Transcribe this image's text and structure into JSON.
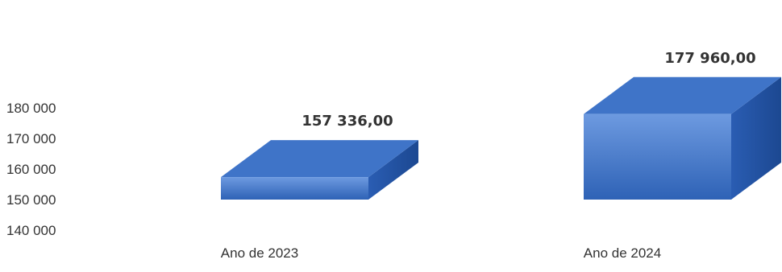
{
  "chart_data": {
    "type": "bar",
    "style": "3d-box",
    "categories": [
      "Ano de 2023",
      "Ano de 2024"
    ],
    "values": [
      157336,
      177960
    ],
    "value_labels": [
      "157 336,00",
      "177 960,00"
    ],
    "y_ticks": [
      140000,
      150000,
      160000,
      170000,
      180000
    ],
    "y_tick_labels": [
      "140 000",
      "150 000",
      "160 000",
      "170 000",
      "180 000"
    ],
    "ylim": [
      140000,
      180000
    ],
    "bar_base": 150000,
    "grid": false,
    "legend": "none",
    "title": "",
    "xlabel": "",
    "ylabel": "",
    "colors": {
      "bar_top": "#3f74c8",
      "bar_front_light": "#6d9ae0",
      "bar_front_dark": "#2e62b6",
      "bar_side": "#1f4f9e",
      "text": "#333333"
    }
  }
}
